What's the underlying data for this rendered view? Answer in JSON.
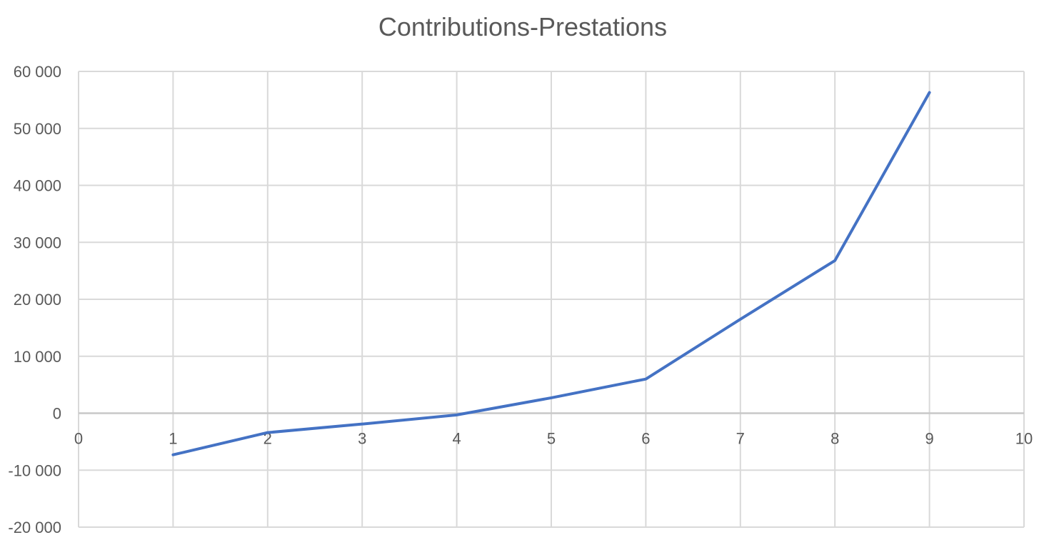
{
  "chart_data": {
    "type": "scatter",
    "mode": "lines",
    "title": "Contributions-Prestations",
    "xlabel": "",
    "ylabel": "",
    "xlim": [
      0,
      10
    ],
    "ylim": [
      -20000,
      60000
    ],
    "x_ticks": [
      0,
      1,
      2,
      3,
      4,
      5,
      6,
      7,
      8,
      9,
      10
    ],
    "x_tick_labels": [
      "0",
      "1",
      "2",
      "3",
      "4",
      "5",
      "6",
      "7",
      "8",
      "9",
      "10"
    ],
    "y_ticks": [
      60000,
      50000,
      40000,
      30000,
      20000,
      10000,
      0,
      -10000,
      -20000
    ],
    "y_tick_labels": [
      "60 000",
      "50 000",
      "40 000",
      "30 000",
      "20 000",
      "10 000",
      "0",
      "-10 000",
      "-20 000"
    ],
    "grid": true,
    "legend": "none",
    "line_color": "#4472c4",
    "series": [
      {
        "x": [
          1,
          2,
          3,
          4,
          5,
          6,
          7,
          8,
          9
        ],
        "y": [
          -7300,
          -3400,
          -1900,
          -300,
          2700,
          6000,
          16500,
          26800,
          56300
        ]
      }
    ]
  }
}
